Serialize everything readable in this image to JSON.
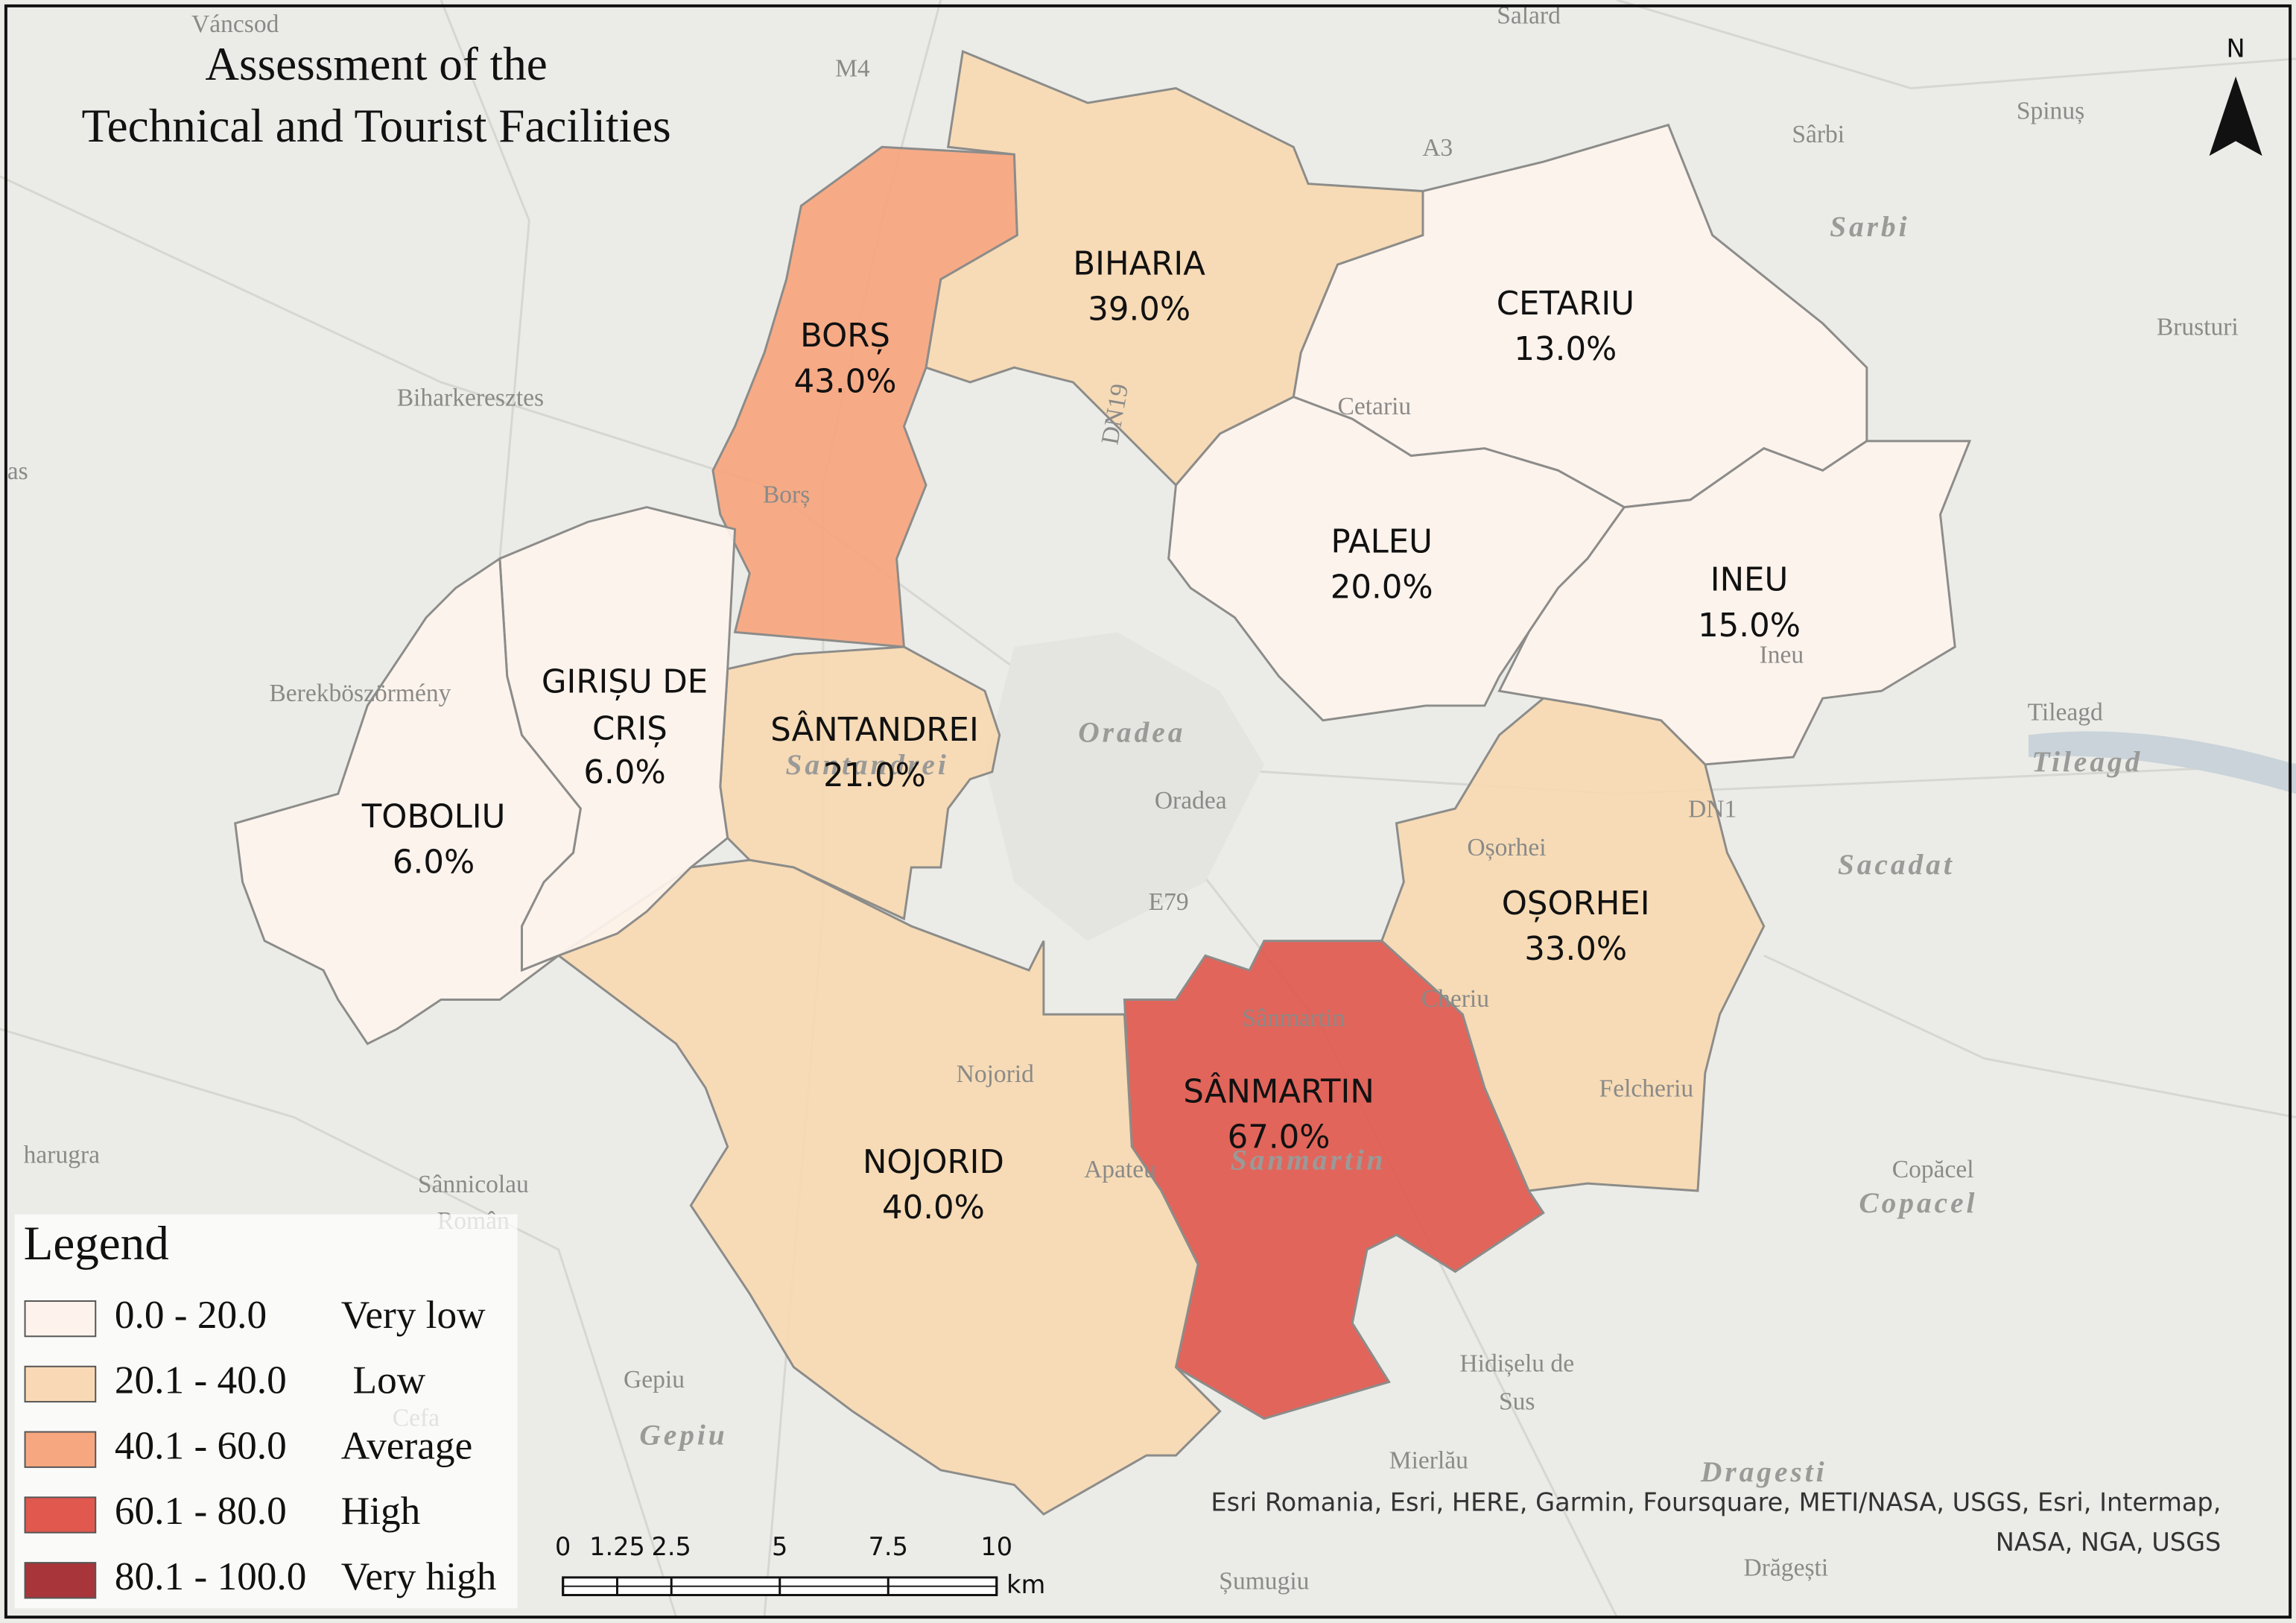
{
  "title": [
    "Assessment of the",
    "Technical and Tourist Facilities"
  ],
  "north": "N",
  "regions": [
    {
      "name": "BORȘ",
      "label": "43.0%",
      "color": "#f6a67e"
    },
    {
      "name": "BIHARIA",
      "label": "39.0%",
      "color": "#f8d9b1"
    },
    {
      "name": "CETARIU",
      "label": "13.0%",
      "color": "#fdf3ec"
    },
    {
      "name": "PALEU",
      "label": "20.0%",
      "color": "#fdf3ec"
    },
    {
      "name": "INEU",
      "label": "15.0%",
      "color": "#fdf3ec"
    },
    {
      "name": "OȘORHEI",
      "label": "33.0%",
      "color": "#f8d9b1"
    },
    {
      "name": "SÂNMARTIN",
      "label": "67.0%",
      "color": "#e05a50"
    },
    {
      "name": "NOJORID",
      "label": "40.0%",
      "color": "#f8d9b1"
    },
    {
      "name": "SÂNTANDREI",
      "label": "21.0%",
      "color": "#f8d9b1"
    },
    {
      "name": "GIRIȘU DE CRIȘ",
      "label": "6.0%",
      "color": "#fdf3ec"
    },
    {
      "name": "TOBOLIU",
      "label": "6.0%",
      "color": "#fdf3ec"
    }
  ],
  "legend": {
    "title": "Legend",
    "items": [
      {
        "range": "0.0 - 20.0",
        "label": "Very low",
        "color": "#fdf3ec"
      },
      {
        "range": "20.1 - 40.0",
        "label": "Low",
        "color": "#f9d9b5"
      },
      {
        "range": "40.1 - 60.0",
        "label": "Average",
        "color": "#f7a77f"
      },
      {
        "range": "60.1 - 80.0",
        "label": "High",
        "color": "#e0584e"
      },
      {
        "range": "80.1 - 100.0",
        "label": "Very high",
        "color": "#a8353a"
      }
    ]
  },
  "scale_bar": {
    "ticks": [
      0,
      1.25,
      2.5,
      5,
      7.5,
      10
    ],
    "unit": "km"
  },
  "attribution": [
    "Esri Romania, Esri, HERE, Garmin, Foursquare, METI/NASA, USGS, Esri, Intermap,",
    "NASA, NGA, USGS"
  ],
  "places": [
    "Váncsod",
    "M4",
    "Salard",
    "A3",
    "Sârbi",
    "Spinuș",
    "Brusturi",
    "Biharkeresztes",
    "Cetariu",
    "Borș",
    "Berekböszörmény",
    "Oradea",
    "Tileagd",
    "DN1",
    "Oșorhei",
    "E79",
    "Cheriu",
    "Sânmartin",
    "Nojorid",
    "Felcheriu",
    "Apateu",
    "Copăcel",
    "Sânnicolau",
    "Român",
    "harugra",
    "Hidișelu de",
    "Sus",
    "Gepiu",
    "Cefa",
    "Mierlău",
    "Drăgești",
    "Șumugiu",
    "Ineu",
    "DN19",
    "as"
  ],
  "places_italic": [
    "Sarbi",
    "Oradea",
    "Tileagd",
    "Sacadat",
    "Sanmartin",
    "Copacel",
    "Gepiu",
    "Dragesti",
    "Santandrei"
  ]
}
